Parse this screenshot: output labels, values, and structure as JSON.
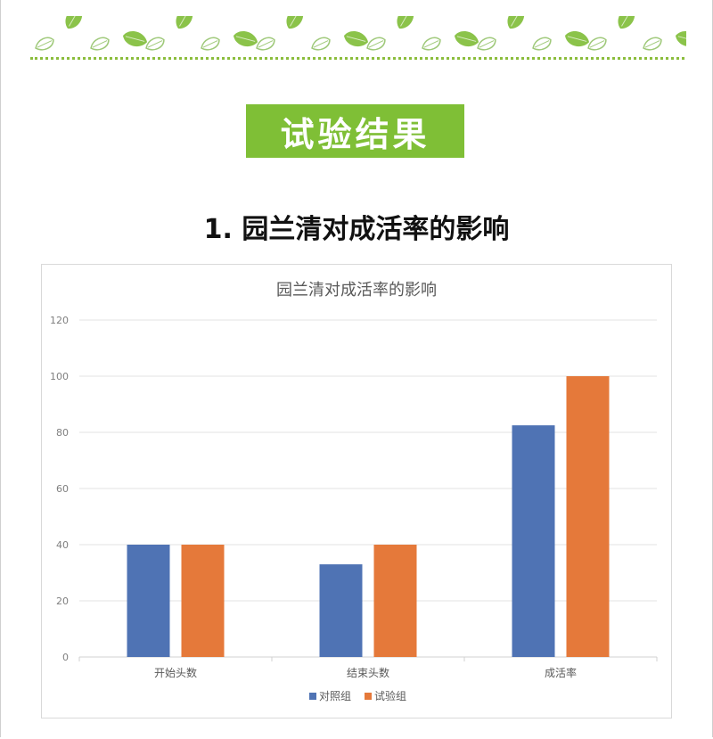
{
  "section": {
    "badge_title": "试验结果"
  },
  "subsection": {
    "heading": "1. 园兰清对成活率的影响"
  },
  "decoration": {
    "leaf_color": "#8bc34a",
    "leaf_outline_color": "#9fc97a",
    "rule_color": "#8bbd3c"
  },
  "colors": {
    "badge_bg": "#7fbf36",
    "series_control": "#4f73b4",
    "series_test": "#e5793a",
    "gridline": "#e3e3e3",
    "axis_text": "#7f7f7f"
  },
  "chart_data": {
    "type": "bar",
    "title": "园兰清对成活率的影响",
    "categories": [
      "开始头数",
      "结束头数",
      "成活率"
    ],
    "series": [
      {
        "name": "对照组",
        "color": "#4f73b4",
        "values": [
          40,
          33,
          82.5
        ]
      },
      {
        "name": "试验组",
        "color": "#e5793a",
        "values": [
          40,
          40,
          100
        ]
      }
    ],
    "ylim": [
      0,
      120
    ],
    "yticks": [
      0,
      20,
      40,
      60,
      80,
      100,
      120
    ],
    "grid": true,
    "legend_position": "bottom"
  }
}
